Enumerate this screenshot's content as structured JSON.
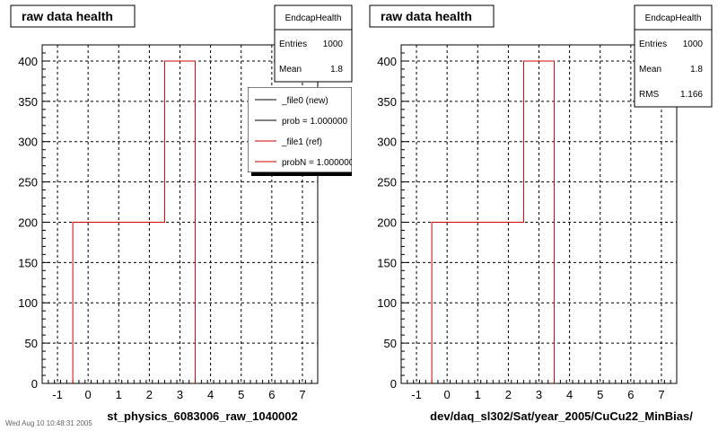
{
  "colors": {
    "histogram": "#cc0000",
    "new": "#000000",
    "ref": "#cc0000"
  },
  "panels": [
    {
      "title": "raw data health",
      "stats": {
        "name": "EndcapHealth",
        "rows": [
          {
            "label": "Entries",
            "value": "1000"
          },
          {
            "label": "Mean",
            "value": "1.8"
          }
        ]
      },
      "legend": [
        {
          "label": "_file0 (new)",
          "color": "#000000"
        },
        {
          "label": "prob = 1.000000",
          "color": "#000000"
        },
        {
          "label": "_file1 (ref)",
          "color": "#cc0000"
        },
        {
          "label": "probN = 1.000000",
          "color": "#cc0000"
        }
      ],
      "xaxis_label": "st_physics_6083006_raw_1040002"
    },
    {
      "title": "raw data health",
      "stats": {
        "name": "EndcapHealth",
        "rows": [
          {
            "label": "Entries",
            "value": "1000"
          },
          {
            "label": "Mean",
            "value": "1.8"
          },
          {
            "label": "RMS",
            "value": "1.166"
          }
        ]
      },
      "legend": [],
      "xaxis_label": "dev/daq_sl302/Sat/year_2005/CuCu22_MinBias/"
    }
  ],
  "footer": {
    "text": "Wed Aug 10 10:48:31 2005"
  },
  "chart_data": [
    {
      "type": "histogram",
      "title": "raw data health",
      "xlabel": "st_physics_6083006_raw_1040002",
      "ylabel": "",
      "xlim": [
        -1.5,
        7.5
      ],
      "ylim": [
        0,
        420
      ],
      "xticks": [
        -1,
        0,
        1,
        2,
        3,
        4,
        5,
        6,
        7
      ],
      "yticks": [
        0,
        50,
        100,
        150,
        200,
        250,
        300,
        350,
        400
      ],
      "grid": true,
      "legend_position": "top-right",
      "series": [
        {
          "name": "_file1 (ref)",
          "bins": [
            {
              "x0": -0.5,
              "x1": 2.5,
              "y": 200
            },
            {
              "x0": 2.5,
              "x1": 3.5,
              "y": 400
            }
          ]
        }
      ]
    },
    {
      "type": "histogram",
      "title": "raw data health",
      "xlabel": "dev/daq_sl302/Sat/year_2005/CuCu22_MinBias/",
      "ylabel": "",
      "xlim": [
        -1.5,
        7.5
      ],
      "ylim": [
        0,
        420
      ],
      "xticks": [
        -1,
        0,
        1,
        2,
        3,
        4,
        5,
        6,
        7
      ],
      "yticks": [
        0,
        50,
        100,
        150,
        200,
        250,
        300,
        350,
        400
      ],
      "grid": true,
      "series": [
        {
          "name": "",
          "bins": [
            {
              "x0": -0.5,
              "x1": 2.5,
              "y": 200
            },
            {
              "x0": 2.5,
              "x1": 3.5,
              "y": 400
            }
          ]
        }
      ]
    }
  ]
}
